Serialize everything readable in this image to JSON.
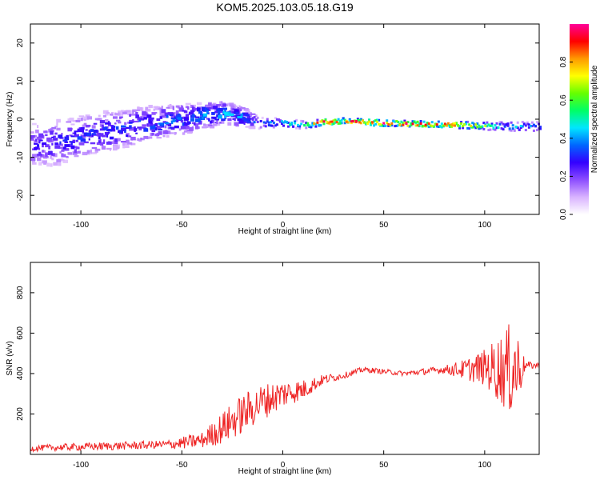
{
  "title": "KOM5.2025.103.05.18.G19",
  "chart_data": [
    {
      "type": "heatmap",
      "xlabel": "Height of straight line (km)",
      "ylabel": "Frequency (Hz)",
      "xlim": [
        -125,
        127
      ],
      "ylim": [
        -25,
        25
      ],
      "xticks": [
        -100,
        -50,
        0,
        50,
        100
      ],
      "yticks": [
        -20,
        -10,
        0,
        10,
        20
      ],
      "colorbar": {
        "label": "Normalized spectral amplitude",
        "range": [
          0,
          1
        ],
        "ticks": [
          "0.0",
          "0.2",
          "0.4",
          "0.6",
          "0.8"
        ],
        "colors": [
          "#ffffff",
          "#d9b3ff",
          "#8c4dff",
          "#3300ff",
          "#0066ff",
          "#00e6ff",
          "#00ff66",
          "#66ff00",
          "#ffff00",
          "#ff9900",
          "#ff0000",
          "#ff0099"
        ]
      },
      "ridge": {
        "x": [
          -125,
          -110,
          -95,
          -80,
          -65,
          -50,
          -40,
          -30,
          -20,
          -12,
          0,
          10,
          20,
          30,
          40,
          50,
          60,
          70,
          80,
          90,
          100,
          110,
          118,
          127
        ],
        "y": [
          -7,
          -6,
          -4,
          -2.5,
          -1,
          0,
          1,
          1.5,
          0.5,
          -1,
          -1,
          -1.5,
          -0.8,
          -0.5,
          -0.8,
          -1,
          -1.2,
          -1.3,
          -1.4,
          -1.6,
          -1.8,
          -1.9,
          -2,
          -2
        ],
        "amplitude": [
          0.25,
          0.28,
          0.3,
          0.32,
          0.34,
          0.36,
          0.38,
          0.4,
          0.38,
          0.3,
          0.45,
          0.6,
          0.9,
          0.85,
          0.88,
          0.9,
          0.9,
          0.88,
          0.85,
          0.8,
          0.6,
          0.45,
          0.4,
          0.35
        ],
        "spread": [
          6,
          6,
          5.5,
          5,
          4.5,
          4,
          3.5,
          3,
          2.5,
          1.5,
          1.2,
          1,
          0.8,
          0.8,
          0.8,
          0.8,
          0.8,
          0.8,
          0.8,
          0.9,
          1,
          1.2,
          1.4,
          1.2
        ]
      }
    },
    {
      "type": "line",
      "xlabel": "Height of straight line (km)",
      "ylabel": "SNR (v/v)",
      "xlim": [
        -125,
        127
      ],
      "ylim": [
        0,
        950
      ],
      "xticks": [
        -100,
        -50,
        0,
        50,
        100
      ],
      "yticks": [
        200,
        400,
        600,
        800
      ],
      "color": "#ee2222",
      "baseline": {
        "x": [
          -125,
          -110,
          -90,
          -70,
          -55,
          -40,
          -30,
          -20,
          -10,
          0,
          10,
          20,
          25,
          30,
          40,
          50,
          60,
          70,
          80,
          90,
          100,
          110,
          115,
          120,
          127
        ],
        "y": [
          30,
          35,
          40,
          45,
          50,
          70,
          130,
          200,
          260,
          300,
          320,
          370,
          380,
          390,
          420,
          410,
          400,
          410,
          420,
          420,
          430,
          420,
          420,
          440,
          440
        ]
      },
      "noise": {
        "x": [
          -125,
          -90,
          -60,
          -40,
          -30,
          -20,
          -10,
          0,
          10,
          20,
          30,
          60,
          80,
          90,
          100,
          110,
          115,
          120,
          127
        ],
        "amp": [
          15,
          20,
          20,
          40,
          80,
          100,
          90,
          70,
          50,
          25,
          15,
          12,
          20,
          50,
          90,
          200,
          260,
          20,
          15
        ]
      }
    }
  ]
}
